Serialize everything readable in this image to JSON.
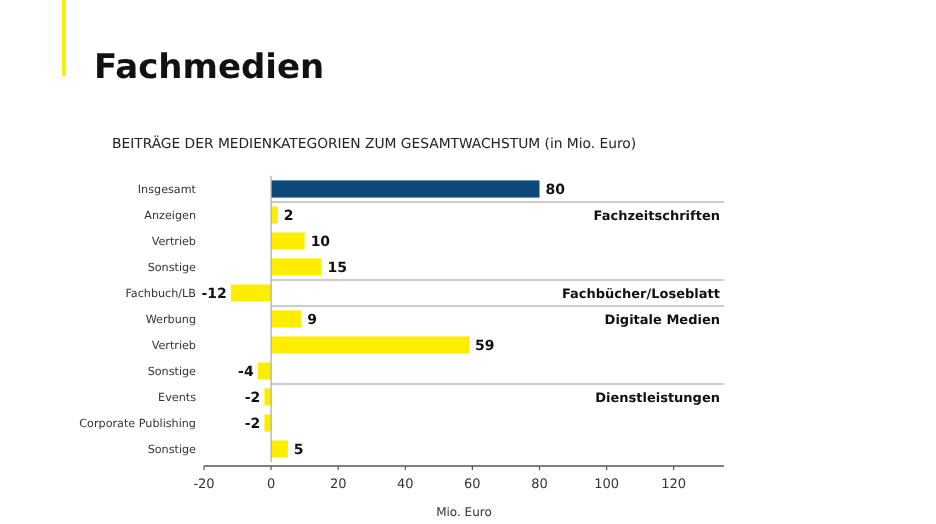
{
  "chart_data": {
    "type": "bar",
    "orientation": "horizontal",
    "title": "Fachmedien",
    "subtitle": "BEITRÄGE DER MEDIENKATEGORIEN ZUM GESAMTWACHSTUM (in Mio. Euro)",
    "xlabel": "Mio. Euro",
    "categories": [
      "Insgesamt",
      "Anzeigen",
      "Vertrieb",
      "Sonstige",
      "Fachbuch/LB",
      "Werbung",
      "Vertrieb",
      "Sonstige",
      "Events",
      "Corporate Publishing",
      "Sonstige"
    ],
    "values": [
      80,
      2,
      10,
      15,
      -12,
      9,
      59,
      -4,
      -2,
      -2,
      5
    ],
    "colors": [
      "#0d4a7a",
      "#ffed00",
      "#ffed00",
      "#ffed00",
      "#ffed00",
      "#ffed00",
      "#ffed00",
      "#ffed00",
      "#ffed00",
      "#ffed00",
      "#ffed00"
    ],
    "xlim": [
      -20,
      135
    ],
    "xticks": [
      -20,
      0,
      20,
      40,
      60,
      80,
      100,
      120
    ],
    "data_labels": true,
    "annotations": [
      "Fachzeitschriften",
      "Fachbücher/Loseblatt",
      "Digitale Medien",
      "Dienstleistungen"
    ]
  }
}
